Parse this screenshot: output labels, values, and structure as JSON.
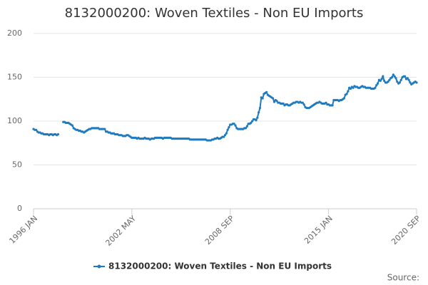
{
  "chart_data": {
    "type": "line",
    "title": "8132000200: Woven Textiles - Non EU Imports",
    "source_label": "Source:",
    "categories": [
      "1996 JAN",
      null,
      null,
      null,
      null,
      null,
      null,
      null,
      null,
      null,
      null,
      null,
      null,
      null,
      null,
      null,
      null,
      null,
      null,
      null,
      null,
      null,
      null,
      null,
      null,
      null,
      null,
      null,
      null,
      null,
      null,
      null,
      null,
      null,
      null,
      null,
      null,
      null,
      null,
      null,
      null,
      null,
      null,
      null,
      null,
      null,
      null,
      null,
      null,
      null,
      null,
      null,
      null,
      null,
      null,
      null,
      null,
      null,
      null,
      null,
      null,
      null,
      null,
      null,
      null,
      null,
      null,
      null,
      null,
      null,
      null,
      null,
      null,
      null,
      null,
      null,
      "2002 MAY",
      null,
      null,
      null,
      null,
      null,
      null,
      null,
      null,
      null,
      null,
      null,
      null,
      null,
      null,
      null,
      null,
      null,
      null,
      null,
      null,
      null,
      null,
      null,
      null,
      null,
      null,
      null,
      null,
      null,
      null,
      null,
      null,
      null,
      null,
      null,
      null,
      null,
      null,
      null,
      null,
      null,
      null,
      null,
      null,
      null,
      null,
      null,
      null,
      null,
      null,
      null,
      null,
      null,
      null,
      null,
      null,
      null,
      null,
      null,
      null,
      null,
      null,
      null,
      null,
      null,
      null,
      null,
      null,
      null,
      null,
      null,
      null,
      null,
      null,
      null,
      "2008 SEP",
      null,
      null,
      null,
      null,
      null,
      null,
      null,
      null,
      null,
      null,
      null,
      null,
      null,
      null,
      null,
      null,
      null,
      null,
      null,
      null,
      null,
      null,
      null,
      null,
      null,
      null,
      null,
      null,
      null,
      null,
      null,
      null,
      null,
      null,
      null,
      null,
      null,
      null,
      null,
      null,
      null,
      null,
      null,
      null,
      null,
      null,
      null,
      null,
      null,
      null,
      null,
      null,
      null,
      null,
      null,
      null,
      null,
      null,
      null,
      null,
      null,
      null,
      null,
      null,
      null,
      null,
      null,
      null,
      null,
      null,
      null,
      null,
      null,
      null,
      null,
      "2015 JAN",
      null,
      null,
      null,
      null,
      null,
      null,
      null,
      null,
      null,
      null,
      null,
      null,
      null,
      null,
      null,
      null,
      null,
      null,
      null,
      null,
      null,
      null,
      null,
      null,
      null,
      null,
      null,
      null,
      null,
      null,
      null,
      null,
      null,
      null,
      null,
      null,
      null,
      null,
      null,
      null,
      null,
      null,
      null,
      null,
      null,
      null,
      null,
      null,
      null,
      null,
      null,
      null,
      null,
      null,
      null,
      null,
      null,
      null,
      null,
      null,
      null,
      null,
      null,
      null,
      null,
      null,
      null,
      "2020 SEP"
    ],
    "series": [
      {
        "name": "8132000200: Woven Textiles - Non EU Imports",
        "color": "#1f7bbf",
        "values": [
          91,
          90,
          90,
          88,
          87,
          87,
          86,
          86,
          85,
          85,
          85,
          85,
          84,
          85,
          85,
          84,
          85,
          85,
          84,
          85,
          null,
          null,
          null,
          99,
          99,
          98,
          98,
          98,
          97,
          96,
          95,
          92,
          91,
          90,
          90,
          89,
          89,
          88,
          88,
          87,
          88,
          89,
          90,
          91,
          91,
          92,
          92,
          92,
          92,
          92,
          92,
          91,
          91,
          91,
          91,
          91,
          88,
          88,
          87,
          87,
          86,
          86,
          86,
          85,
          85,
          85,
          84,
          84,
          84,
          83,
          83,
          83,
          84,
          84,
          83,
          82,
          81,
          81,
          81,
          81,
          80,
          81,
          80,
          80,
          80,
          80,
          81,
          80,
          80,
          80,
          79,
          80,
          80,
          80,
          81,
          81,
          81,
          81,
          81,
          81,
          80,
          81,
          81,
          81,
          81,
          81,
          81,
          80,
          80,
          80,
          80,
          80,
          80,
          80,
          80,
          80,
          80,
          80,
          80,
          80,
          80,
          79,
          79,
          79,
          79,
          79,
          79,
          79,
          79,
          79,
          79,
          79,
          79,
          79,
          78,
          78,
          78,
          78,
          79,
          79,
          80,
          80,
          81,
          80,
          80,
          81,
          82,
          82,
          84,
          86,
          90,
          93,
          96,
          96,
          97,
          97,
          95,
          92,
          91,
          91,
          91,
          91,
          91,
          92,
          92,
          94,
          97,
          97,
          98,
          100,
          102,
          102,
          101,
          104,
          110,
          115,
          127,
          126,
          131,
          132,
          133,
          130,
          129,
          128,
          127,
          126,
          122,
          124,
          123,
          121,
          121,
          120,
          120,
          120,
          118,
          119,
          119,
          118,
          118,
          119,
          120,
          121,
          121,
          122,
          122,
          121,
          122,
          121,
          121,
          119,
          116,
          115,
          115,
          115,
          116,
          117,
          118,
          119,
          120,
          121,
          121,
          122,
          121,
          120,
          120,
          120,
          121,
          119,
          119,
          118,
          118,
          118,
          124,
          124,
          124,
          124,
          123,
          124,
          124,
          125,
          126,
          130,
          131,
          134,
          138,
          137,
          139,
          138,
          140,
          139,
          139,
          138,
          138,
          139,
          140,
          139,
          139,
          138,
          138,
          138,
          138,
          137,
          137,
          137,
          138,
          141,
          143,
          147,
          146,
          148,
          151,
          146,
          144,
          144,
          145,
          147,
          149,
          150,
          153,
          151,
          149,
          145,
          143,
          144,
          147,
          150,
          151,
          151,
          148,
          149,
          147,
          144,
          142,
          143,
          144,
          145,
          144
        ]
      }
    ],
    "ylim": [
      0,
      200
    ],
    "yticks": [
      0,
      50,
      100,
      150,
      200
    ],
    "grid": true
  }
}
